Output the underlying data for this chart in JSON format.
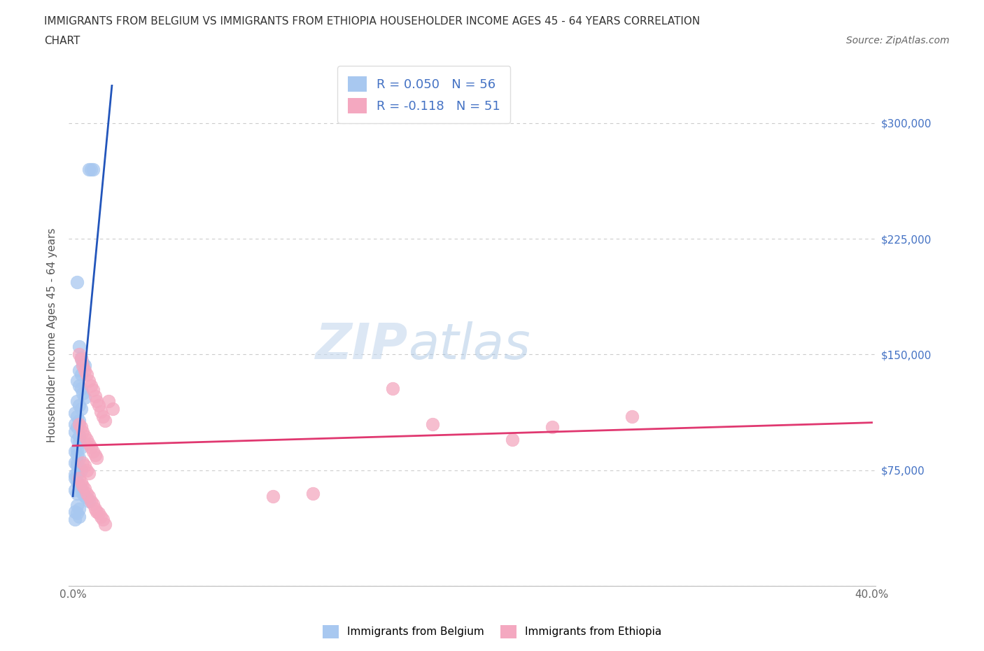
{
  "title_line1": "IMMIGRANTS FROM BELGIUM VS IMMIGRANTS FROM ETHIOPIA HOUSEHOLDER INCOME AGES 45 - 64 YEARS CORRELATION",
  "title_line2": "CHART",
  "source": "Source: ZipAtlas.com",
  "ylabel": "Householder Income Ages 45 - 64 years",
  "watermark_zip": "ZIP",
  "watermark_atlas": "atlas",
  "belgium_R": 0.05,
  "belgium_N": 56,
  "ethiopia_R": -0.118,
  "ethiopia_N": 51,
  "belgium_color": "#a8c8f0",
  "ethiopia_color": "#f4a8c0",
  "belgium_line_color": "#2255bb",
  "ethiopia_line_color": "#e03870",
  "dashed_line_color": "#88aacc",
  "grid_color": "#cccccc",
  "background_color": "#ffffff",
  "right_label_color": "#4472c4",
  "belgium_scatter_x": [
    0.008,
    0.009,
    0.01,
    0.002,
    0.003,
    0.004,
    0.005,
    0.006,
    0.003,
    0.004,
    0.002,
    0.003,
    0.004,
    0.005,
    0.006,
    0.002,
    0.003,
    0.004,
    0.001,
    0.002,
    0.003,
    0.001,
    0.002,
    0.001,
    0.003,
    0.002,
    0.003,
    0.004,
    0.002,
    0.001,
    0.002,
    0.003,
    0.001,
    0.002,
    0.003,
    0.004,
    0.002,
    0.001,
    0.002,
    0.003,
    0.004,
    0.005,
    0.006,
    0.007,
    0.008,
    0.002,
    0.003,
    0.001,
    0.002,
    0.003,
    0.001,
    0.002,
    0.001,
    0.002,
    0.001,
    0.002
  ],
  "belgium_scatter_y": [
    270000,
    270000,
    270000,
    197000,
    155000,
    148000,
    145000,
    143000,
    140000,
    137000,
    133000,
    130000,
    128000,
    125000,
    122000,
    120000,
    117000,
    115000,
    112000,
    110000,
    107000,
    105000,
    103000,
    100000,
    97000,
    95000,
    93000,
    90000,
    88000,
    87000,
    85000,
    83000,
    80000,
    78000,
    77000,
    75000,
    73000,
    70000,
    68000,
    65000,
    63000,
    60000,
    58000,
    57000,
    55000,
    52000,
    50000,
    48000,
    47000,
    45000,
    43000,
    60000,
    62000,
    67000,
    72000,
    80000
  ],
  "ethiopia_scatter_x": [
    0.003,
    0.004,
    0.005,
    0.006,
    0.007,
    0.008,
    0.009,
    0.01,
    0.011,
    0.012,
    0.013,
    0.014,
    0.015,
    0.016,
    0.003,
    0.004,
    0.005,
    0.006,
    0.007,
    0.008,
    0.009,
    0.01,
    0.011,
    0.012,
    0.005,
    0.006,
    0.007,
    0.008,
    0.003,
    0.004,
    0.005,
    0.006,
    0.007,
    0.008,
    0.009,
    0.01,
    0.011,
    0.012,
    0.013,
    0.014,
    0.015,
    0.016,
    0.018,
    0.02,
    0.16,
    0.22,
    0.28,
    0.1,
    0.18,
    0.24,
    0.12
  ],
  "ethiopia_scatter_y": [
    150000,
    147000,
    143000,
    140000,
    137000,
    133000,
    130000,
    127000,
    123000,
    120000,
    117000,
    113000,
    110000,
    107000,
    105000,
    103000,
    100000,
    97000,
    95000,
    92000,
    90000,
    87000,
    85000,
    83000,
    80000,
    78000,
    75000,
    73000,
    70000,
    67000,
    65000,
    63000,
    60000,
    58000,
    55000,
    53000,
    50000,
    48000,
    47000,
    45000,
    43000,
    40000,
    120000,
    115000,
    128000,
    95000,
    110000,
    58000,
    105000,
    103000,
    60000
  ]
}
